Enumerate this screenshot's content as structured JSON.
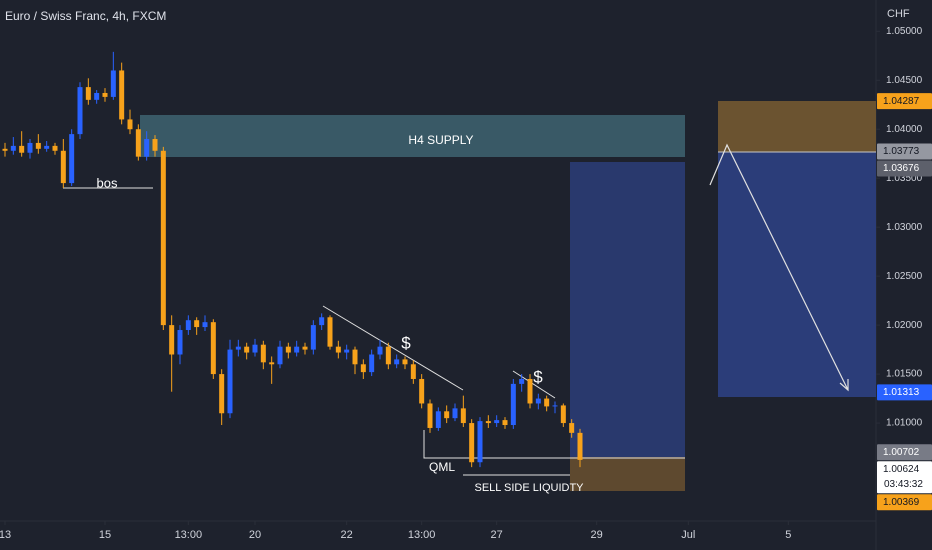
{
  "chart_data": {
    "type": "candlestick",
    "title": "Euro / Swiss Franc, 4h, FXCM",
    "y_label": "CHF",
    "up_color": "#2962ff",
    "down_color": "#f7a21b",
    "grid": false,
    "x": [
      0,
      1,
      2,
      3,
      4,
      5,
      6,
      7,
      8,
      9,
      10,
      11,
      12,
      13,
      14,
      15,
      16,
      17,
      18,
      19,
      20,
      21,
      22,
      23,
      24,
      25,
      26,
      27,
      28,
      29,
      30,
      31,
      32,
      33,
      34,
      35,
      36,
      37,
      38,
      39,
      40,
      41,
      42,
      43,
      44,
      45,
      46,
      47,
      48,
      49,
      50,
      51,
      52,
      53,
      54,
      55,
      56,
      57,
      58,
      59,
      60,
      61,
      62,
      63,
      64,
      65,
      66,
      67,
      68,
      69
    ],
    "open": [
      1.038,
      1.0378,
      1.0383,
      1.0376,
      1.0386,
      1.038,
      1.0383,
      1.0378,
      1.0345,
      1.0395,
      1.0443,
      1.043,
      1.0437,
      1.0433,
      1.046,
      1.041,
      1.04,
      1.0372,
      1.039,
      1.0378,
      1.02,
      1.017,
      1.0195,
      1.0205,
      1.0198,
      1.0203,
      1.015,
      1.011,
      1.0175,
      1.0178,
      1.0172,
      1.018,
      1.0162,
      1.016,
      1.0178,
      1.0172,
      1.0178,
      1.0175,
      1.02,
      1.0208,
      1.0178,
      1.0172,
      1.0175,
      1.016,
      1.0152,
      1.017,
      1.0178,
      1.016,
      1.0165,
      1.016,
      1.0145,
      1.012,
      1.0095,
      1.0112,
      1.0105,
      1.0115,
      1.01,
      1.006,
      1.0102,
      1.01,
      1.0103,
      1.0098,
      1.014,
      1.0145,
      1.012,
      1.0125,
      1.0117,
      1.0118,
      1.01,
      1.009
    ],
    "high": [
      1.0386,
      1.0392,
      1.0398,
      1.039,
      1.0395,
      1.0388,
      1.0386,
      1.039,
      1.04,
      1.0448,
      1.0452,
      1.044,
      1.0442,
      1.0479,
      1.0468,
      1.042,
      1.0405,
      1.0398,
      1.0394,
      1.0382,
      1.021,
      1.02,
      1.021,
      1.0208,
      1.021,
      1.0206,
      1.0155,
      1.0185,
      1.0185,
      1.0182,
      1.0186,
      1.0184,
      1.0168,
      1.0184,
      1.0182,
      1.0184,
      1.0182,
      1.0205,
      1.0212,
      1.021,
      1.0184,
      1.018,
      1.0178,
      1.0165,
      1.0175,
      1.0185,
      1.0182,
      1.017,
      1.0168,
      1.0164,
      1.015,
      1.0124,
      1.0116,
      1.0118,
      1.012,
      1.0128,
      1.0104,
      1.0106,
      1.0108,
      1.0108,
      1.0106,
      1.0145,
      1.015,
      1.015,
      1.013,
      1.0128,
      1.0122,
      1.012,
      1.0104,
      1.0094
    ],
    "low": [
      1.0372,
      1.0374,
      1.0372,
      1.037,
      1.0375,
      1.0377,
      1.0374,
      1.034,
      1.0342,
      1.039,
      1.0425,
      1.0426,
      1.0428,
      1.043,
      1.0405,
      1.0395,
      1.0368,
      1.0368,
      1.0372,
      1.0195,
      1.0132,
      1.016,
      1.019,
      1.019,
      1.0194,
      1.0145,
      1.0098,
      1.0105,
      1.0168,
      1.0165,
      1.0168,
      1.0155,
      1.014,
      1.0156,
      1.0166,
      1.0168,
      1.017,
      1.017,
      1.0195,
      1.0175,
      1.0166,
      1.0165,
      1.015,
      1.0145,
      1.0148,
      1.0165,
      1.0155,
      1.0156,
      1.0155,
      1.014,
      1.0115,
      1.009,
      1.0092,
      1.01,
      1.0102,
      1.0096,
      1.0055,
      1.0055,
      1.0095,
      1.0096,
      1.0094,
      1.0094,
      1.0132,
      1.0115,
      1.0114,
      1.0112,
      1.011,
      1.0096,
      1.0085,
      1.0055
    ],
    "close": [
      1.0378,
      1.0383,
      1.0376,
      1.0386,
      1.038,
      1.0383,
      1.0378,
      1.0345,
      1.0395,
      1.0443,
      1.043,
      1.0437,
      1.0433,
      1.046,
      1.041,
      1.04,
      1.0372,
      1.039,
      1.0378,
      1.02,
      1.017,
      1.0195,
      1.0205,
      1.0198,
      1.0203,
      1.015,
      1.011,
      1.0175,
      1.0178,
      1.0172,
      1.018,
      1.0162,
      1.016,
      1.0178,
      1.0172,
      1.0178,
      1.0175,
      1.02,
      1.0208,
      1.0178,
      1.0172,
      1.0175,
      1.016,
      1.0152,
      1.017,
      1.0178,
      1.016,
      1.0165,
      1.016,
      1.0145,
      1.012,
      1.0095,
      1.0112,
      1.0105,
      1.0115,
      1.01,
      1.006,
      1.0102,
      1.01,
      1.0103,
      1.0098,
      1.014,
      1.0145,
      1.012,
      1.0125,
      1.0117,
      1.0118,
      1.01,
      1.009,
      1.00624
    ],
    "xlim": [
      -0.6,
      104.4
    ],
    "xticks": [
      {
        "value": 0,
        "label": "13"
      },
      {
        "value": 12,
        "label": "15"
      },
      {
        "value": 22,
        "label": "13:00"
      },
      {
        "value": 30,
        "label": "20"
      },
      {
        "value": 41,
        "label": "22"
      },
      {
        "value": 50,
        "label": "13:00"
      },
      {
        "value": 59,
        "label": "27"
      },
      {
        "value": 71,
        "label": "29"
      },
      {
        "value": 82,
        "label": "Jul"
      },
      {
        "value": 94,
        "label": "5"
      }
    ],
    "ylim": [
      1.0,
      1.0535
    ],
    "yticks": [
      {
        "value": 1.05,
        "label": "1.05000"
      },
      {
        "value": 1.045,
        "label": "1.04500"
      },
      {
        "value": 1.04,
        "label": "1.04000"
      },
      {
        "value": 1.035,
        "label": "1.03500"
      },
      {
        "value": 1.03,
        "label": "1.03000"
      },
      {
        "value": 1.025,
        "label": "1.02500"
      },
      {
        "value": 1.02,
        "label": "1.02000"
      },
      {
        "value": 1.015,
        "label": "1.01500"
      },
      {
        "value": 1.01,
        "label": "1.01000"
      }
    ],
    "price_labels": [
      {
        "value": 1.04287,
        "label": "1.04287",
        "color": "#f7a21b"
      },
      {
        "value": 1.03773,
        "label": "1.03773",
        "color": "#9598a1"
      },
      {
        "value": 1.03676,
        "label": "1.03676",
        "color": "#5d606b"
      },
      {
        "value": 1.01313,
        "label": "1.01313",
        "color": "#2962ff"
      },
      {
        "value": 1.00702,
        "label": "1.00702",
        "color": "#787b86"
      },
      {
        "value": 1.00624,
        "label": "1.00624",
        "color": "#ffffff",
        "countdown": "03:43:32"
      },
      {
        "value": 1.00369,
        "label": "1.00369",
        "color": "#f7a21b"
      }
    ],
    "annotations": [
      "H4 SUPPLY",
      "bos",
      "$",
      "$",
      "QML",
      "SELL SIDE LIQUIDTY"
    ]
  }
}
